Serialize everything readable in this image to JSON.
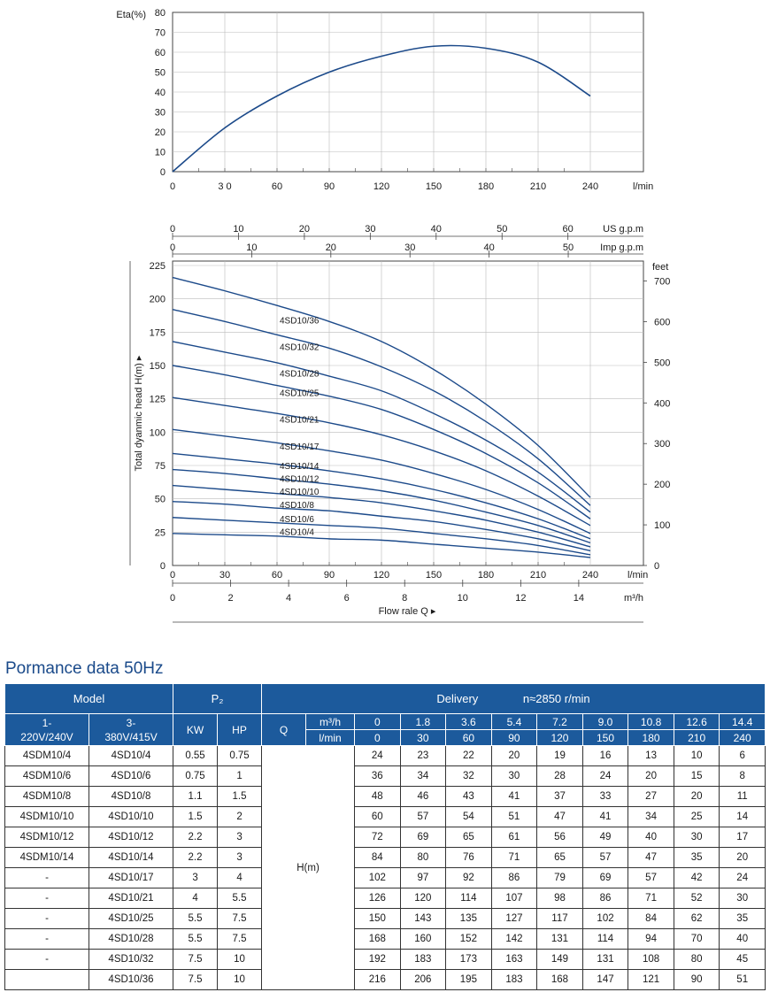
{
  "eta_chart": {
    "ylabel": "Eta(%)",
    "xunit": "l/min",
    "yticks": [
      0,
      10,
      20,
      30,
      40,
      50,
      60,
      70,
      80
    ],
    "xticks": [
      "0",
      "3 0",
      "60",
      "90",
      "120",
      "150",
      "180",
      "210",
      "240"
    ],
    "color": "#1c4a8a"
  },
  "head_chart": {
    "ylabel_left": "Total dyanmic head H(m) ▸",
    "yticks_left": [
      0,
      25,
      50,
      75,
      100,
      125,
      150,
      175,
      200,
      225
    ],
    "right_unit": "feet",
    "yticks_right": [
      0,
      100,
      200,
      300,
      400,
      500,
      600,
      700
    ],
    "xunit_lmin": "l/min",
    "xticks_lmin": [
      0,
      30,
      60,
      90,
      120,
      150,
      180,
      210,
      240
    ],
    "top_usgpm_label": "US g.p.m",
    "top_usgpm_ticks": [
      0,
      10,
      20,
      30,
      40,
      50,
      60
    ],
    "top_impgpm_label": "Imp g.p.m",
    "top_impgpm_ticks": [
      0,
      10,
      20,
      30,
      40,
      50
    ],
    "xunit_m3h": "m³/h",
    "xticks_m3h": [
      0,
      2,
      4,
      6,
      8,
      10,
      12,
      14
    ],
    "flow_label": "Flow rale Q ▸",
    "color": "#1c4a8a"
  },
  "chart_data": [
    {
      "type": "line",
      "title": "",
      "xlabel": "l/min",
      "ylabel": "Eta(%)",
      "xlim": [
        0,
        240
      ],
      "ylim": [
        0,
        80
      ],
      "series": [
        {
          "x": [
            0,
            30,
            60,
            90,
            120,
            150,
            180,
            210,
            240
          ],
          "values": [
            0,
            22,
            38,
            50,
            58,
            63,
            62,
            55,
            38
          ]
        }
      ]
    },
    {
      "type": "line",
      "title": "",
      "xlabel": "l/min",
      "ylabel": "Total dyanmic head H(m)",
      "xlim": [
        0,
        240
      ],
      "ylim": [
        0,
        225
      ],
      "x": [
        0,
        30,
        60,
        90,
        120,
        150,
        180,
        210,
        240
      ],
      "series": [
        {
          "name": "4SD10/36",
          "values": [
            216,
            206,
            195,
            183,
            168,
            147,
            121,
            90,
            51
          ]
        },
        {
          "name": "4SD10/32",
          "values": [
            192,
            183,
            173,
            163,
            149,
            131,
            108,
            80,
            45
          ]
        },
        {
          "name": "4SD10/28",
          "values": [
            168,
            160,
            152,
            142,
            131,
            114,
            94,
            70,
            40
          ]
        },
        {
          "name": "4SD10/25",
          "values": [
            150,
            143,
            135,
            127,
            117,
            102,
            84,
            62,
            35
          ]
        },
        {
          "name": "4SD10/21",
          "values": [
            126,
            120,
            114,
            107,
            98,
            86,
            71,
            52,
            30
          ]
        },
        {
          "name": "4SD10/17",
          "values": [
            102,
            97,
            92,
            86,
            79,
            69,
            57,
            42,
            24
          ]
        },
        {
          "name": "4SD10/14",
          "values": [
            84,
            80,
            76,
            71,
            65,
            57,
            47,
            35,
            20
          ]
        },
        {
          "name": "4SD10/12",
          "values": [
            72,
            69,
            65,
            61,
            56,
            49,
            40,
            30,
            17
          ]
        },
        {
          "name": "4SD10/10",
          "values": [
            60,
            57,
            54,
            51,
            47,
            41,
            34,
            25,
            14
          ]
        },
        {
          "name": "4SD10/8",
          "values": [
            48,
            46,
            43,
            41,
            37,
            33,
            27,
            20,
            11
          ]
        },
        {
          "name": "4SD10/6",
          "values": [
            36,
            34,
            32,
            30,
            28,
            24,
            20,
            15,
            8
          ]
        },
        {
          "name": "4SD10/4",
          "values": [
            24,
            23,
            22,
            20,
            19,
            16,
            13,
            10,
            6
          ]
        }
      ]
    }
  ],
  "table": {
    "title": "Pormance data 50Hz",
    "model_header": "Model",
    "p2_header": "P₂",
    "delivery_header": "Delivery",
    "speed": "n≈2850 r/min",
    "col_1ph": "1-\n220V/240V",
    "col_3ph": "3-\n380V/415V",
    "kw": "KW",
    "hp": "HP",
    "q": "Q",
    "m3h_label": "m³/h",
    "lmin_label": "l/min",
    "m3h": [
      "0",
      "1.8",
      "3.6",
      "5.4",
      "7.2",
      "9.0",
      "10.8",
      "12.6",
      "14.4"
    ],
    "lmin": [
      "0",
      "30",
      "60",
      "90",
      "120",
      "150",
      "180",
      "210",
      "240"
    ],
    "hm_label": "H(m)",
    "rows": [
      {
        "m1": "4SDM10/4",
        "m3": "4SD10/4",
        "kw": "0.55",
        "hp": "0.75",
        "h": [
          "24",
          "23",
          "22",
          "20",
          "19",
          "16",
          "13",
          "10",
          "6"
        ]
      },
      {
        "m1": "4SDM10/6",
        "m3": "4SD10/6",
        "kw": "0.75",
        "hp": "1",
        "h": [
          "36",
          "34",
          "32",
          "30",
          "28",
          "24",
          "20",
          "15",
          "8"
        ]
      },
      {
        "m1": "4SDM10/8",
        "m3": "4SD10/8",
        "kw": "1.1",
        "hp": "1.5",
        "h": [
          "48",
          "46",
          "43",
          "41",
          "37",
          "33",
          "27",
          "20",
          "11"
        ]
      },
      {
        "m1": "4SDM10/10",
        "m3": "4SD10/10",
        "kw": "1.5",
        "hp": "2",
        "h": [
          "60",
          "57",
          "54",
          "51",
          "47",
          "41",
          "34",
          "25",
          "14"
        ]
      },
      {
        "m1": "4SDM10/12",
        "m3": "4SD10/12",
        "kw": "2.2",
        "hp": "3",
        "h": [
          "72",
          "69",
          "65",
          "61",
          "56",
          "49",
          "40",
          "30",
          "17"
        ]
      },
      {
        "m1": "4SDM10/14",
        "m3": "4SD10/14",
        "kw": "2.2",
        "hp": "3",
        "h": [
          "84",
          "80",
          "76",
          "71",
          "65",
          "57",
          "47",
          "35",
          "20"
        ]
      },
      {
        "m1": "-",
        "m3": "4SD10/17",
        "kw": "3",
        "hp": "4",
        "h": [
          "102",
          "97",
          "92",
          "86",
          "79",
          "69",
          "57",
          "42",
          "24"
        ]
      },
      {
        "m1": "-",
        "m3": "4SD10/21",
        "kw": "4",
        "hp": "5.5",
        "h": [
          "126",
          "120",
          "114",
          "107",
          "98",
          "86",
          "71",
          "52",
          "30"
        ]
      },
      {
        "m1": "-",
        "m3": "4SD10/25",
        "kw": "5.5",
        "hp": "7.5",
        "h": [
          "150",
          "143",
          "135",
          "127",
          "117",
          "102",
          "84",
          "62",
          "35"
        ]
      },
      {
        "m1": "-",
        "m3": "4SD10/28",
        "kw": "5.5",
        "hp": "7.5",
        "h": [
          "168",
          "160",
          "152",
          "142",
          "131",
          "114",
          "94",
          "70",
          "40"
        ]
      },
      {
        "m1": "-",
        "m3": "4SD10/32",
        "kw": "7.5",
        "hp": "10",
        "h": [
          "192",
          "183",
          "173",
          "163",
          "149",
          "131",
          "108",
          "80",
          "45"
        ]
      },
      {
        "m1": "",
        "m3": "4SD10/36",
        "kw": "7.5",
        "hp": "10",
        "h": [
          "216",
          "206",
          "195",
          "183",
          "168",
          "147",
          "121",
          "90",
          "51"
        ]
      }
    ]
  }
}
